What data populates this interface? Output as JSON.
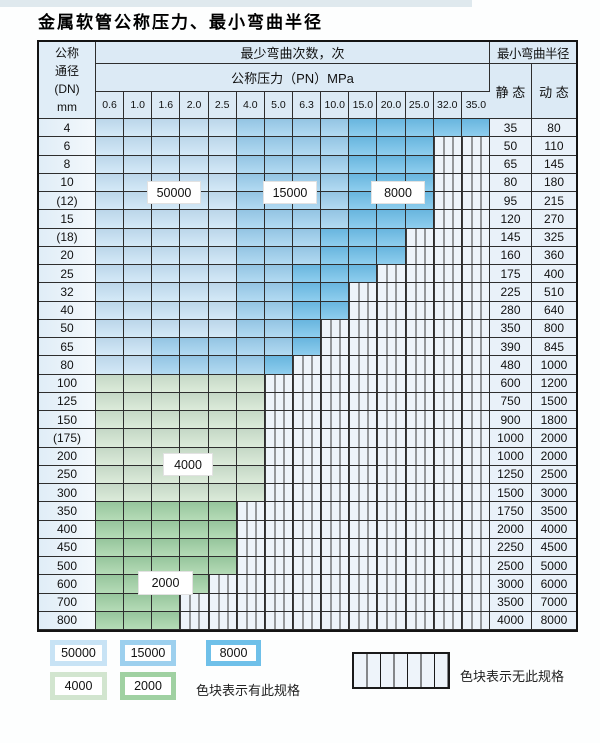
{
  "title": "金属软管公称压力、最小弯曲半径",
  "table": {
    "corner_lines": [
      "公称",
      "通径",
      "(DN)",
      "mm"
    ],
    "bend_header": "最少弯曲次数，次",
    "pressure_header": "公称压力（PN）MPa",
    "radius_header": "最小弯曲半径",
    "static_header": "静 态",
    "dynamic_header": "动 态",
    "pressures": [
      "0.6",
      "1.0",
      "1.6",
      "2.0",
      "2.5",
      "4.0",
      "5.0",
      "6.3",
      "10.0",
      "15.0",
      "20.0",
      "25.0",
      "32.0",
      "35.0"
    ],
    "cell_code_meaning": {
      "L": "50000次",
      "M": "15000次",
      "D": "8000次",
      "G": "4000次",
      "E": "2000次",
      "X": "无此规格"
    },
    "rows": [
      {
        "dn": "4",
        "cells": "LLLLLMMMMDDDDD",
        "static": "35",
        "dynamic": "80"
      },
      {
        "dn": "6",
        "cells": "LLLLLMMMMDDDXX",
        "static": "50",
        "dynamic": "110"
      },
      {
        "dn": "8",
        "cells": "LLLLLMMMMDDDXX",
        "static": "65",
        "dynamic": "145"
      },
      {
        "dn": "10",
        "cells": "LLLLLMMMMDDDXX",
        "static": "80",
        "dynamic": "180"
      },
      {
        "dn": "(12)",
        "cells": "LLLLLMMMMDDDXX",
        "static": "95",
        "dynamic": "215"
      },
      {
        "dn": "15",
        "cells": "LLLLLMMMMDDDXX",
        "static": "120",
        "dynamic": "270"
      },
      {
        "dn": "(18)",
        "cells": "LLLLLMMMDDDXXX",
        "static": "145",
        "dynamic": "325"
      },
      {
        "dn": "20",
        "cells": "LLLLLMMMDDDXXX",
        "static": "160",
        "dynamic": "360"
      },
      {
        "dn": "25",
        "cells": "LLLLLMMDDDXXXX",
        "static": "175",
        "dynamic": "400"
      },
      {
        "dn": "32",
        "cells": "LLLLLMMDDXXXXX",
        "static": "225",
        "dynamic": "510"
      },
      {
        "dn": "40",
        "cells": "LLLLLMMDDXXXXX",
        "static": "280",
        "dynamic": "640"
      },
      {
        "dn": "50",
        "cells": "LLLLLMMDXXXXXX",
        "static": "350",
        "dynamic": "800"
      },
      {
        "dn": "65",
        "cells": "LLMMMMMDXXXXXX",
        "static": "390",
        "dynamic": "845"
      },
      {
        "dn": "80",
        "cells": "LLMMMMDXXXXXXX",
        "static": "480",
        "dynamic": "1000"
      },
      {
        "dn": "100",
        "cells": "GGGGGGXXXXXXXX",
        "static": "600",
        "dynamic": "1200"
      },
      {
        "dn": "125",
        "cells": "GGGGGGXXXXXXXX",
        "static": "750",
        "dynamic": "1500"
      },
      {
        "dn": "150",
        "cells": "GGGGGGXXXXXXXX",
        "static": "900",
        "dynamic": "1800"
      },
      {
        "dn": "(175)",
        "cells": "GGGGGGXXXXXXXX",
        "static": "1000",
        "dynamic": "2000"
      },
      {
        "dn": "200",
        "cells": "GGGGGGXXXXXXXX",
        "static": "1000",
        "dynamic": "2000"
      },
      {
        "dn": "250",
        "cells": "GGGGGGXXXXXXXX",
        "static": "1250",
        "dynamic": "2500"
      },
      {
        "dn": "300",
        "cells": "GGGGGGXXXXXXXX",
        "static": "1500",
        "dynamic": "3000"
      },
      {
        "dn": "350",
        "cells": "EEEEEXXXXXXXXX",
        "static": "1750",
        "dynamic": "3500"
      },
      {
        "dn": "400",
        "cells": "EEEEEXXXXXXXXX",
        "static": "2000",
        "dynamic": "4000"
      },
      {
        "dn": "450",
        "cells": "EEEEEXXXXXXXXX",
        "static": "2250",
        "dynamic": "4500"
      },
      {
        "dn": "500",
        "cells": "EEEEEXXXXXXXXX",
        "static": "2500",
        "dynamic": "5000"
      },
      {
        "dn": "600",
        "cells": "EEEEXXXXXXXXXX",
        "static": "3000",
        "dynamic": "6000"
      },
      {
        "dn": "700",
        "cells": "EEEXXXXXXXXXXX",
        "static": "3500",
        "dynamic": "7000"
      },
      {
        "dn": "800",
        "cells": "EEEXXXXXXXXXXX",
        "static": "4000",
        "dynamic": "8000"
      }
    ]
  },
  "overlays": [
    {
      "label": "50000"
    },
    {
      "label": "15000"
    },
    {
      "label": "8000"
    },
    {
      "label": "4000"
    },
    {
      "label": "2000"
    }
  ],
  "legend": {
    "swatches": [
      {
        "label": "50000",
        "code": "L"
      },
      {
        "label": "15000",
        "code": "M"
      },
      {
        "label": "8000",
        "code": "D"
      },
      {
        "label": "4000",
        "code": "G"
      },
      {
        "label": "2000",
        "code": "E"
      }
    ],
    "has_spec_text": "色块表示有此规格",
    "no_spec_text": "色块表示无此规格"
  },
  "colors": {
    "L": "#c8e3f5",
    "M": "#9dd0ee",
    "D": "#6fc0e9",
    "G": "#d2e5cf",
    "E": "#a0d1a2",
    "hatchbg": "#eef4fa",
    "hatchline": "#3c3c3c",
    "headerbg": "#dceaf5",
    "labelbg": "#e0edf7",
    "valuebg": "#e9f1f9",
    "border": "#2e2e2e",
    "strip": "#dfe9ee"
  }
}
